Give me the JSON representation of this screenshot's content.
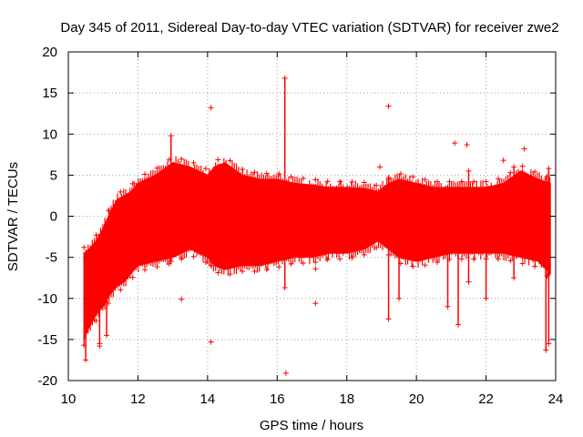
{
  "chart_data": {
    "type": "scatter",
    "title": "Day 345 of 2011, Sidereal Day-to-day VTEC variation (SDTVAR) for receiver zwe2",
    "xlabel": "GPS time / hours",
    "ylabel": "SDTVAR / TECUs",
    "xlim": [
      10,
      24
    ],
    "ylim": [
      -20,
      20
    ],
    "xticks": [
      10,
      12,
      14,
      16,
      18,
      20,
      22,
      24
    ],
    "yticks": [
      -20,
      -15,
      -10,
      -5,
      0,
      5,
      10,
      15,
      20
    ],
    "xtick_labels": [
      "10",
      "12",
      "14",
      "16",
      "18",
      "20",
      "22",
      "24"
    ],
    "ytick_labels": [
      "-20",
      "-15",
      "-10",
      "-5",
      "0",
      "5",
      "10",
      "15",
      "20"
    ],
    "grid": true,
    "marker": "+",
    "color": "#ff0000",
    "series": [
      {
        "name": "SDTVAR",
        "envelope": {
          "x": [
            10.45,
            10.6,
            10.8,
            11.0,
            11.2,
            11.4,
            11.6,
            11.8,
            12.0,
            12.5,
            13.0,
            13.5,
            14.0,
            14.2,
            14.5,
            15.0,
            15.5,
            16.0,
            16.5,
            17.0,
            17.5,
            18.0,
            18.5,
            18.9,
            19.2,
            19.5,
            20.0,
            20.5,
            21.0,
            21.5,
            22.0,
            22.5,
            23.0,
            23.5,
            23.85
          ],
          "upper": [
            -4.5,
            -4.0,
            -3.0,
            -1.5,
            0.5,
            2.0,
            2.5,
            3.0,
            4.0,
            5.0,
            6.5,
            6.0,
            5.0,
            6.0,
            6.5,
            5.0,
            4.5,
            4.5,
            4.0,
            3.8,
            3.5,
            3.5,
            3.4,
            3.0,
            4.0,
            4.5,
            4.0,
            3.5,
            3.5,
            3.5,
            3.5,
            4.0,
            5.5,
            4.5,
            4.0
          ],
          "lower": [
            -15.0,
            -13.5,
            -12.0,
            -11.0,
            -9.5,
            -8.5,
            -8.0,
            -7.0,
            -6.0,
            -5.5,
            -5.0,
            -4.0,
            -5.0,
            -6.0,
            -6.5,
            -6.0,
            -6.0,
            -5.5,
            -5.0,
            -5.0,
            -4.5,
            -4.5,
            -4.0,
            -3.0,
            -4.0,
            -5.0,
            -5.5,
            -5.0,
            -4.5,
            -4.5,
            -4.5,
            -4.5,
            -5.0,
            -5.5,
            -7.0
          ]
        },
        "spikes": [
          {
            "x": 10.5,
            "min": -17.5,
            "max": -4.5
          },
          {
            "x": 10.9,
            "min": -15.5,
            "max": -4.0
          },
          {
            "x": 11.1,
            "min": -14.5,
            "max": -1.0
          },
          {
            "x": 12.95,
            "min": -5.5,
            "max": 9.8
          },
          {
            "x": 14.1,
            "min": -6.0,
            "max": 2.0
          },
          {
            "x": 16.22,
            "min": -8.7,
            "max": 16.8
          },
          {
            "x": 19.2,
            "min": -12.5,
            "max": 4.5
          },
          {
            "x": 19.5,
            "min": -10.0,
            "max": 4.0
          },
          {
            "x": 20.9,
            "min": -11.0,
            "max": 3.5
          },
          {
            "x": 21.2,
            "min": -13.2,
            "max": 3.5
          },
          {
            "x": 21.5,
            "min": -8.0,
            "max": 5.5
          },
          {
            "x": 22.0,
            "min": -10.0,
            "max": 3.0
          },
          {
            "x": 22.8,
            "min": -7.5,
            "max": 6.0
          },
          {
            "x": 23.72,
            "min": -16.3,
            "max": 4.5
          },
          {
            "x": 23.8,
            "min": -15.5,
            "max": 5.8
          }
        ],
        "outliers": [
          {
            "x": 14.1,
            "y": 13.2
          },
          {
            "x": 14.1,
            "y": -15.3
          },
          {
            "x": 13.25,
            "y": -10.1
          },
          {
            "x": 16.25,
            "y": -19.1
          },
          {
            "x": 17.1,
            "y": -10.6
          },
          {
            "x": 17.1,
            "y": -6.4
          },
          {
            "x": 19.2,
            "y": 13.4
          },
          {
            "x": 18.95,
            "y": 6.0
          },
          {
            "x": 21.1,
            "y": 8.9
          },
          {
            "x": 21.45,
            "y": 8.7
          },
          {
            "x": 22.5,
            "y": 6.8
          },
          {
            "x": 23.1,
            "y": 8.2
          },
          {
            "x": 10.9,
            "y": -15.8
          }
        ]
      }
    ]
  }
}
